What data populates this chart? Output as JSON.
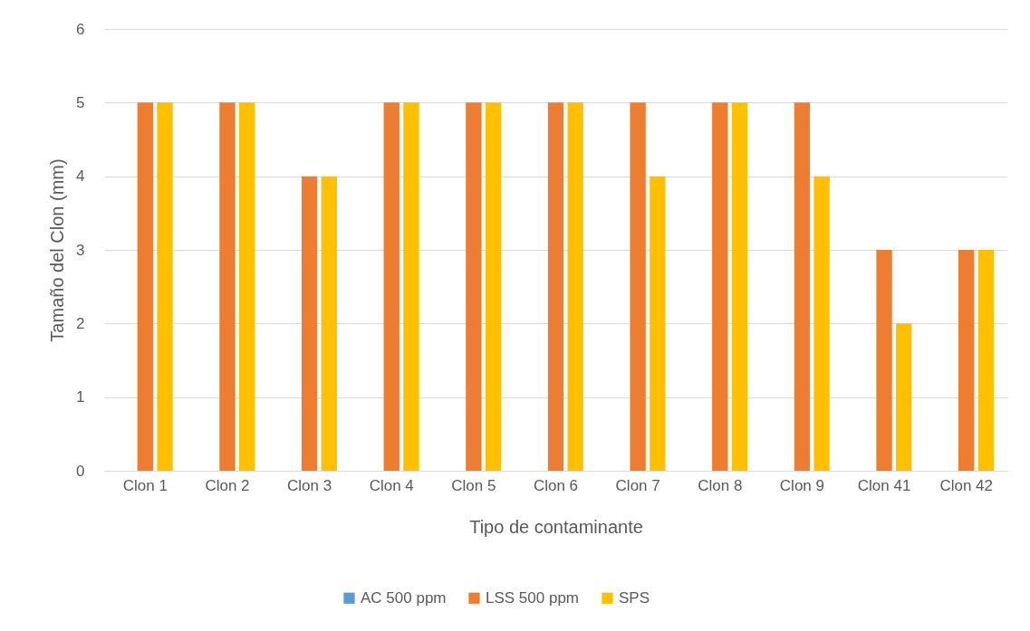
{
  "chart_data": {
    "type": "bar",
    "xlabel": "Tipo de contaminante",
    "ylabel": "Tamaño del Clon (mm)",
    "categories": [
      "Clon 1",
      "Clon 2",
      "Clon 3",
      "Clon 4",
      "Clon 5",
      "Clon 6",
      "Clon 7",
      "Clon 8",
      "Clon 9",
      "Clon 41",
      "Clon 42"
    ],
    "series": [
      {
        "name": "AC 500 ppm",
        "color": "#5b9bd5",
        "values": [
          0,
          0,
          0,
          0,
          0,
          0,
          0,
          0,
          0,
          0,
          0
        ]
      },
      {
        "name": "LSS 500 ppm",
        "color": "#ed7d31",
        "values": [
          5,
          5,
          4,
          5,
          5,
          5,
          5,
          5,
          5,
          3,
          3
        ]
      },
      {
        "name": "SPS",
        "color": "#ffc000",
        "values": [
          5,
          5,
          4,
          5,
          5,
          5,
          4,
          5,
          4,
          2,
          3
        ]
      }
    ],
    "ylim": [
      0,
      6
    ],
    "yticks": [
      0,
      1,
      2,
      3,
      4,
      5,
      6
    ],
    "grid": "y",
    "legend": "bottom"
  }
}
